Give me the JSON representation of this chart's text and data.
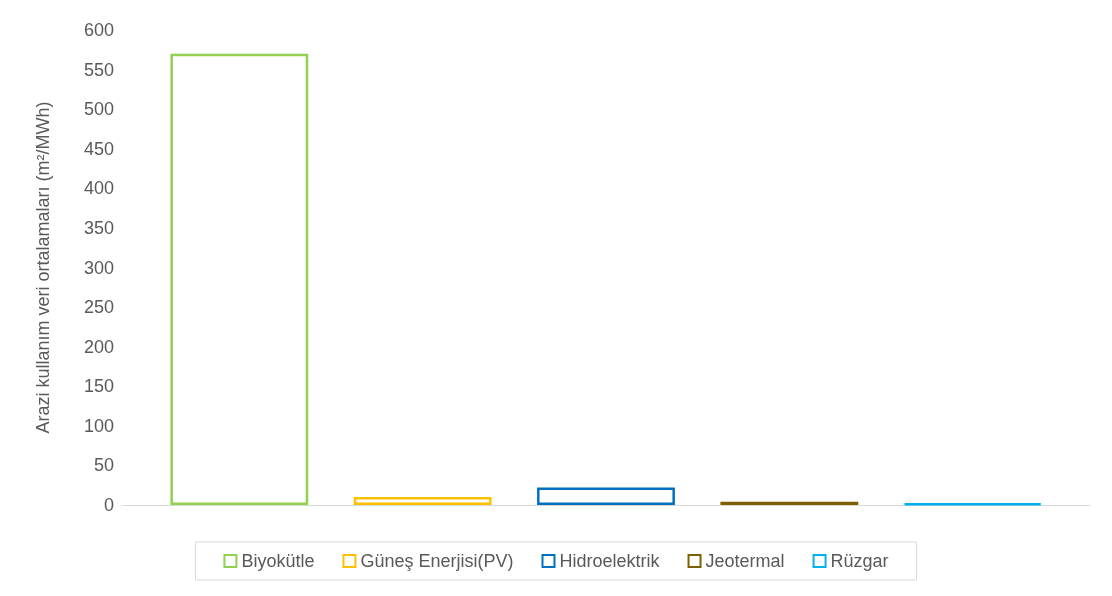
{
  "chart_data": {
    "type": "bar",
    "ylabel": "Arazi kullanım veri ortalamaları (m²/MWh)",
    "categories": [
      null
    ],
    "series": [
      {
        "name": "Biyokütle",
        "color": "#92d050",
        "values": [
          570
        ]
      },
      {
        "name": "Güneş Enerjisi(PV)",
        "color": "#ffc000",
        "values": [
          10
        ]
      },
      {
        "name": "Hidroelektrik",
        "color": "#0070c0",
        "values": [
          22
        ]
      },
      {
        "name": "Jeotermal",
        "color": "#7f6000",
        "values": [
          4
        ]
      },
      {
        "name": "Rüzgar",
        "color": "#00b0f0",
        "values": [
          2
        ]
      }
    ],
    "ylim": [
      0,
      600
    ],
    "yticks": [
      0,
      50,
      100,
      150,
      200,
      250,
      300,
      350,
      400,
      450,
      500,
      550,
      600
    ],
    "grid": false,
    "legend": "bottom"
  }
}
